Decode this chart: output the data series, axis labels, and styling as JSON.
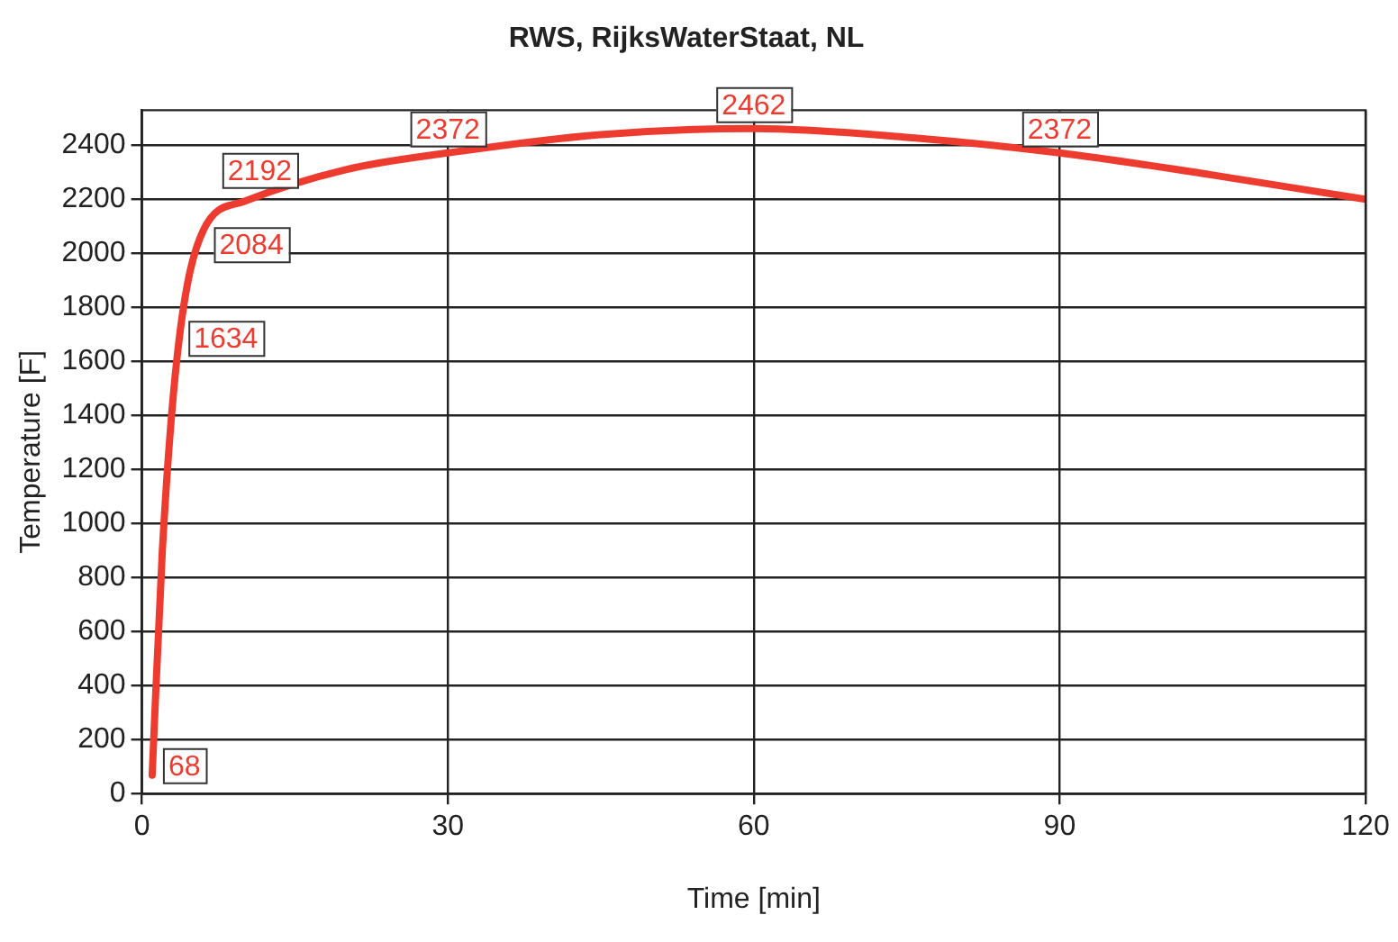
{
  "chart_data": {
    "type": "line",
    "title": "RWS, RijksWaterStaat, NL",
    "xlabel": "Time [min]",
    "ylabel": "Temperature [F]",
    "x": [
      1,
      2,
      3.5,
      6,
      10,
      20,
      30,
      45,
      60,
      75,
      90,
      105,
      120
    ],
    "series": [
      {
        "color": "#ee3b2f",
        "values": [
          68,
          900,
          1634,
          2084,
          2192,
          2310,
          2372,
          2440,
          2462,
          2430,
          2372,
          2290,
          2200
        ],
        "value_labels": [
          "68",
          null,
          "1634",
          "2084",
          "2192",
          null,
          "2372",
          null,
          "2462",
          null,
          "2372",
          null,
          null
        ]
      }
    ],
    "xlim": [
      0,
      120
    ],
    "xticks": [
      0,
      30,
      60,
      90,
      120
    ],
    "ylim": [
      0,
      2530
    ],
    "yticks": [
      0,
      200,
      400,
      600,
      800,
      1000,
      1200,
      1400,
      1600,
      1800,
      2000,
      2200,
      2400
    ],
    "grid": true,
    "legend": false,
    "marker": "none",
    "line_style": "solid"
  }
}
